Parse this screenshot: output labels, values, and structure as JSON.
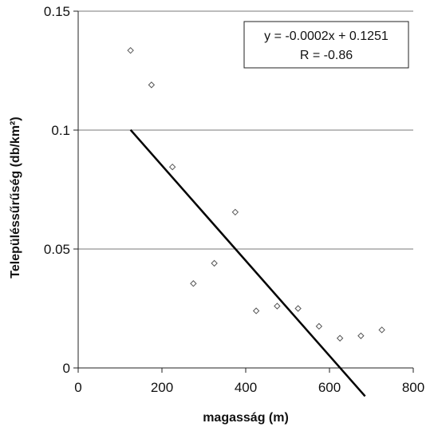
{
  "chart_data": {
    "type": "scatter",
    "title": "",
    "xlabel": "magasság (m)",
    "ylabel": "Településsűrűség (db/km²)",
    "xlim": [
      0,
      800
    ],
    "ylim": [
      0,
      0.15
    ],
    "x_ticks": [
      0,
      200,
      400,
      600,
      800
    ],
    "y_ticks": [
      0,
      0.05,
      0.1,
      0.15
    ],
    "x_tick_labels": [
      "0",
      "200",
      "400",
      "600",
      "800"
    ],
    "y_tick_labels": [
      "0",
      "0.05",
      "0.1",
      "0.15"
    ],
    "grid": "horizontal",
    "legend": "none",
    "series": [
      {
        "points": [
          {
            "x": 125,
            "y": 0.1335
          },
          {
            "x": 175,
            "y": 0.119
          },
          {
            "x": 225,
            "y": 0.0845
          },
          {
            "x": 275,
            "y": 0.0355
          },
          {
            "x": 325,
            "y": 0.044
          },
          {
            "x": 375,
            "y": 0.0655
          },
          {
            "x": 425,
            "y": 0.024
          },
          {
            "x": 475,
            "y": 0.026
          },
          {
            "x": 525,
            "y": 0.025
          },
          {
            "x": 575,
            "y": 0.0175
          },
          {
            "x": 625,
            "y": 0.0125
          },
          {
            "x": 675,
            "y": 0.0135
          },
          {
            "x": 725,
            "y": 0.016
          }
        ],
        "marker_color": "#555555"
      }
    ],
    "trendline": {
      "slope": -0.0002,
      "intercept": 0.1251,
      "x_range": [
        125,
        685
      ],
      "color": "#000000"
    },
    "annotation": {
      "lines": [
        "y = -0.0002x + 0.1251",
        "R = -0.86"
      ],
      "position": "top-right"
    }
  }
}
